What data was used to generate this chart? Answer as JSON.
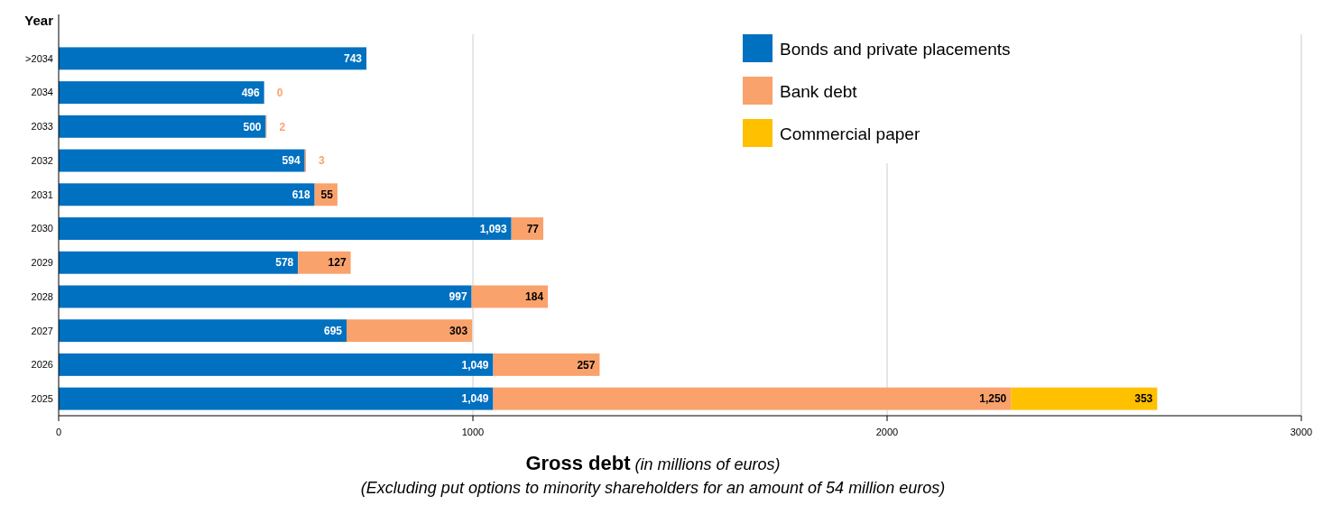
{
  "chart_data": {
    "type": "bar",
    "orientation": "horizontal",
    "stacked": true,
    "ylabel": "Year",
    "xlabel": "Gross debt (in millions of euros)",
    "annotations": [
      "(Excluding put options to minority shareholders for an amount of 54 million euros)"
    ],
    "categories": [
      ">2034",
      "2034",
      "2033",
      "2032",
      "2031",
      "2030",
      "2029",
      "2028",
      "2027",
      "2026",
      "2025"
    ],
    "series": [
      {
        "name": "Bonds and private placements",
        "color": "#0070c0",
        "values": [
          743,
          496,
          500,
          594,
          618,
          1093,
          578,
          997,
          695,
          1049,
          1049
        ],
        "value_labels": [
          "743",
          "496",
          "500",
          "594",
          "618",
          "1,093",
          "578",
          "997",
          "695",
          "1,049",
          "1,049"
        ]
      },
      {
        "name": "Bank debt",
        "color": "#f9a26c",
        "values": [
          null,
          0,
          2,
          3,
          55,
          77,
          127,
          184,
          303,
          257,
          1250
        ],
        "value_labels": [
          null,
          "0",
          "2",
          "3",
          "55",
          "77",
          "127",
          "184",
          "303",
          "257",
          "1,250"
        ]
      },
      {
        "name": "Commercial paper",
        "color": "#ffc000",
        "values": [
          null,
          null,
          null,
          null,
          null,
          null,
          null,
          null,
          null,
          null,
          353
        ],
        "value_labels": [
          null,
          null,
          null,
          null,
          null,
          null,
          null,
          null,
          null,
          null,
          "353"
        ]
      }
    ],
    "xlim": [
      0,
      3000
    ],
    "xticks": [
      0,
      1000,
      2000,
      3000
    ],
    "grid": "x",
    "legend": "top right"
  }
}
